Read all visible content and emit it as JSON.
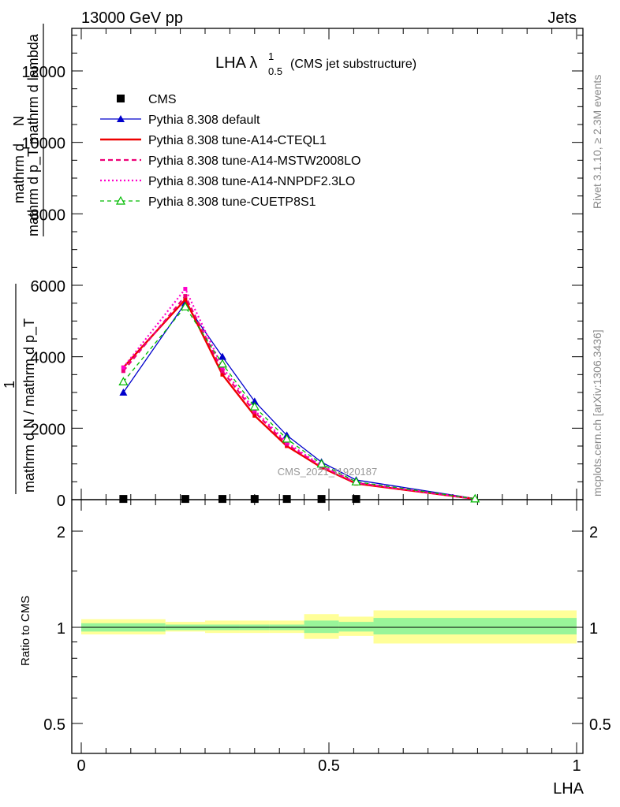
{
  "header": {
    "left": "13000 GeV pp",
    "right": "Jets"
  },
  "title": {
    "main": "LHA λ",
    "sup": "1",
    "sub": "0.5",
    "suffix": "(CMS jet substructure)"
  },
  "side": {
    "rivet": "Rivet 3.1.10, ≥ 2.3M events",
    "site": "mcplots.cern.ch [arXiv:1306.3436]"
  },
  "watermark": "CMS_2021_I1920187",
  "ylabel": {
    "line1": "mathrm d",
    "line1b": "N",
    "line2": "mathrm d p_T mathrm d lambda",
    "den_numer": "1",
    "den": "mathrm d N / mathrm d p_T"
  },
  "ratio": {
    "ylabel": "Ratio to CMS"
  },
  "xlabel": "LHA",
  "colors": {
    "cms": "#000000",
    "pythia_default": "#0000cc",
    "a14_cteql1": "#ee0000",
    "a14_mstw": "#ee0077",
    "a14_nnpdf": "#ff00cc",
    "cuetp8s1": "#00bb00",
    "band_inner": "#99f599",
    "band_outer": "#ffff99"
  },
  "chart_data": {
    "type": "line",
    "xlim": [
      -0.02,
      1.02
    ],
    "ylim_main": [
      0,
      13300
    ],
    "ylim_ratio": [
      0.4,
      2.4
    ],
    "log_ratio": true,
    "x_ticks": [
      "0",
      "0.5",
      "1"
    ],
    "y_ticks_main": [
      "0",
      "2000",
      "4000",
      "6000",
      "8000",
      "10000",
      "12000"
    ],
    "y_ticks_ratio": [
      "0.5",
      "1",
      "2"
    ],
    "x": [
      0.085,
      0.21,
      0.285,
      0.35,
      0.415,
      0.485,
      0.555,
      0.795
    ],
    "series": [
      {
        "name": "CMS",
        "style": "markers",
        "values": [
          20,
          20,
          20,
          20,
          20,
          20,
          20,
          null
        ]
      },
      {
        "name": "Pythia 8.308 default",
        "style": "line-triangle",
        "values": [
          3000,
          5500,
          4000,
          2750,
          1800,
          1050,
          550,
          30
        ]
      },
      {
        "name": "Pythia 8.308 tune-A14-CTEQL1",
        "style": "solid-thick",
        "values": [
          3700,
          5600,
          3500,
          2350,
          1500,
          900,
          450,
          20
        ]
      },
      {
        "name": "Pythia 8.308 tune-A14-MSTW2008LO",
        "style": "dashed",
        "values": [
          3600,
          5700,
          3600,
          2450,
          1550,
          930,
          470,
          20
        ]
      },
      {
        "name": "Pythia 8.308 tune-A14-NNPDF2.3LO",
        "style": "dotted",
        "values": [
          3700,
          5900,
          3700,
          2500,
          1600,
          950,
          480,
          20
        ]
      },
      {
        "name": "Pythia 8.308 tune-CUETP8S1",
        "style": "dashed-triangle-open",
        "values": [
          3300,
          5400,
          3800,
          2600,
          1700,
          1000,
          500,
          25
        ]
      }
    ],
    "ratio_bands": [
      {
        "x0": 0.0,
        "x1": 0.17,
        "inner": [
          0.97,
          1.03
        ],
        "outer": [
          0.95,
          1.06
        ]
      },
      {
        "x0": 0.17,
        "x1": 0.25,
        "inner": [
          0.98,
          1.02
        ],
        "outer": [
          0.97,
          1.04
        ]
      },
      {
        "x0": 0.25,
        "x1": 0.32,
        "inner": [
          0.98,
          1.02
        ],
        "outer": [
          0.96,
          1.05
        ]
      },
      {
        "x0": 0.32,
        "x1": 0.38,
        "inner": [
          0.98,
          1.02
        ],
        "outer": [
          0.96,
          1.05
        ]
      },
      {
        "x0": 0.38,
        "x1": 0.45,
        "inner": [
          0.98,
          1.02
        ],
        "outer": [
          0.96,
          1.05
        ]
      },
      {
        "x0": 0.45,
        "x1": 0.52,
        "inner": [
          0.96,
          1.05
        ],
        "outer": [
          0.92,
          1.1
        ]
      },
      {
        "x0": 0.52,
        "x1": 0.59,
        "inner": [
          0.97,
          1.04
        ],
        "outer": [
          0.94,
          1.08
        ]
      },
      {
        "x0": 0.59,
        "x1": 1.0,
        "inner": [
          0.95,
          1.07
        ],
        "outer": [
          0.89,
          1.13
        ]
      }
    ]
  }
}
